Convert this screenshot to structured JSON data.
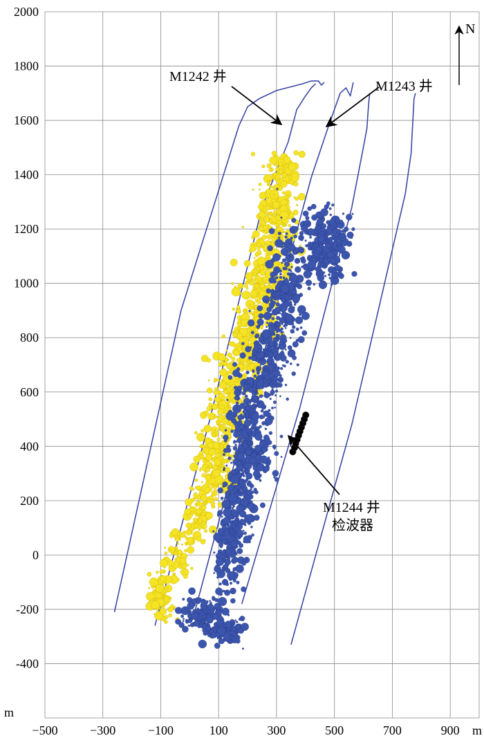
{
  "chart_data": {
    "type": "scatter",
    "x_unit": "m",
    "y_unit": "m",
    "xlim": [
      -500,
      1000
    ],
    "ylim": [
      -600,
      2000
    ],
    "x_ticks": [
      -500,
      -300,
      -100,
      100,
      300,
      500,
      700,
      900
    ],
    "x_tick_labels": [
      "−500",
      "−300",
      "−100",
      "100",
      "300",
      "500",
      "700",
      "900"
    ],
    "y_ticks": [
      -400,
      -200,
      0,
      200,
      400,
      600,
      800,
      1000,
      1200,
      1400,
      1600,
      1800,
      2000
    ],
    "y_tick_labels": [
      "-400",
      "-200",
      "0",
      "200",
      "400",
      "600",
      "800",
      "1000",
      "1200",
      "1400",
      "1600",
      "1800",
      "2000"
    ],
    "grid": true,
    "north_label": "N",
    "annotations": [
      {
        "text": "M1242 井",
        "target": [
          290,
          1590
        ]
      },
      {
        "text": "M1243 井",
        "target": [
          440,
          1570
        ]
      },
      {
        "text": "M1244 井",
        "target": [
          395,
          450
        ]
      },
      {
        "text": "检波器",
        "target": null
      }
    ],
    "wells": [
      {
        "name": "M1242",
        "traces": [
          [
            [
              -260,
              -210
            ],
            [
              -30,
              900
            ],
            [
              170,
              1580
            ],
            [
              200,
              1650
            ],
            [
              240,
              1680
            ],
            [
              300,
              1710
            ],
            [
              390,
              1735
            ],
            [
              420,
              1745
            ],
            [
              445,
              1745
            ],
            [
              455,
              1730
            ],
            [
              465,
              1740
            ]
          ],
          [
            [
              -120,
              -260
            ],
            [
              70,
              500
            ],
            [
              250,
              1280
            ],
            [
              340,
              1520
            ],
            [
              370,
              1640
            ],
            [
              400,
              1690
            ],
            [
              420,
              1720
            ],
            [
              435,
              1735
            ]
          ]
        ]
      },
      {
        "name": "M1243",
        "traces": [
          [
            [
              20,
              -200
            ],
            [
              220,
              600
            ],
            [
              420,
              1390
            ],
            [
              480,
              1580
            ],
            [
              520,
              1700
            ],
            [
              540,
              1720
            ],
            [
              555,
              1690
            ],
            [
              565,
              1740
            ]
          ],
          [
            [
              180,
              -180
            ],
            [
              380,
              540
            ],
            [
              560,
              1280
            ],
            [
              600,
              1500
            ],
            [
              612,
              1570
            ],
            [
              618,
              1660
            ],
            [
              622,
              1700
            ]
          ],
          [
            [
              350,
              -330
            ],
            [
              560,
              480
            ],
            [
              745,
              1330
            ],
            [
              765,
              1480
            ],
            [
              770,
              1580
            ],
            [
              775,
              1680
            ],
            [
              780,
              1700
            ]
          ]
        ]
      }
    ],
    "series": [
      {
        "name": "",
        "color": "#f5e326",
        "edge": "#c9b400",
        "clusters": [
          [
            300,
            1250,
            60,
            150,
            220
          ],
          [
            260,
            1000,
            55,
            200,
            230
          ],
          [
            200,
            780,
            55,
            200,
            210
          ],
          [
            130,
            560,
            55,
            180,
            200
          ],
          [
            90,
            330,
            55,
            150,
            160
          ],
          [
            30,
            160,
            40,
            110,
            90
          ],
          [
            -40,
            10,
            40,
            90,
            70
          ],
          [
            -100,
            -150,
            40,
            70,
            90
          ],
          [
            330,
            1420,
            50,
            60,
            60
          ]
        ]
      },
      {
        "name": "",
        "color": "#3c55ad",
        "edge": "#253a85",
        "clusters": [
          [
            460,
            1150,
            75,
            120,
            260
          ],
          [
            330,
            950,
            55,
            250,
            230
          ],
          [
            270,
            720,
            50,
            180,
            180
          ],
          [
            200,
            480,
            55,
            210,
            200
          ],
          [
            170,
            220,
            50,
            170,
            190
          ],
          [
            140,
            20,
            45,
            160,
            140
          ],
          [
            50,
            -220,
            80,
            60,
            140
          ],
          [
            120,
            -280,
            60,
            45,
            90
          ],
          [
            230,
            400,
            70,
            140,
            70
          ]
        ]
      },
      {
        "name": "",
        "color": "#000000",
        "points": [
          [
            356,
            380
          ],
          [
            362,
            395
          ],
          [
            366,
            410
          ],
          [
            371,
            425
          ],
          [
            376,
            440
          ],
          [
            381,
            455
          ],
          [
            386,
            470
          ],
          [
            391,
            485
          ],
          [
            396,
            500
          ],
          [
            401,
            515
          ]
        ]
      }
    ]
  }
}
